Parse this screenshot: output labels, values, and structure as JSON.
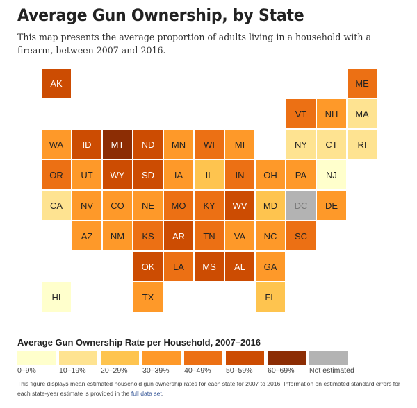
{
  "title": "Average Gun Ownership, by State",
  "subtitle": "This map presents the average proportion of adults living in a household with a firearm, between 2007 and 2016.",
  "legend": {
    "title": "Average Gun Ownership Rate per Household, 2007–2016",
    "bins": [
      {
        "label": "0–9%",
        "color": "#ffffcc"
      },
      {
        "label": "10–19%",
        "color": "#fee391"
      },
      {
        "label": "20–29%",
        "color": "#fec44f"
      },
      {
        "label": "30–39%",
        "color": "#fe9929"
      },
      {
        "label": "40–49%",
        "color": "#ec7014"
      },
      {
        "label": "50–59%",
        "color": "#cc4c02"
      },
      {
        "label": "60–69%",
        "color": "#8c2d04"
      },
      {
        "label": "Not estimated",
        "color": "#b3b3b3"
      }
    ]
  },
  "states": [
    {
      "abbr": "AK",
      "row": 0,
      "col": 0,
      "bin": 5
    },
    {
      "abbr": "ME",
      "row": 0,
      "col": 10,
      "bin": 4
    },
    {
      "abbr": "VT",
      "row": 1,
      "col": 8,
      "bin": 4
    },
    {
      "abbr": "NH",
      "row": 1,
      "col": 9,
      "bin": 3
    },
    {
      "abbr": "MA",
      "row": 1,
      "col": 10,
      "bin": 1
    },
    {
      "abbr": "WA",
      "row": 2,
      "col": 0,
      "bin": 3
    },
    {
      "abbr": "ID",
      "row": 2,
      "col": 1,
      "bin": 5
    },
    {
      "abbr": "MT",
      "row": 2,
      "col": 2,
      "bin": 6
    },
    {
      "abbr": "ND",
      "row": 2,
      "col": 3,
      "bin": 5
    },
    {
      "abbr": "MN",
      "row": 2,
      "col": 4,
      "bin": 3
    },
    {
      "abbr": "WI",
      "row": 2,
      "col": 5,
      "bin": 4
    },
    {
      "abbr": "MI",
      "row": 2,
      "col": 6,
      "bin": 3
    },
    {
      "abbr": "NY",
      "row": 2,
      "col": 8,
      "bin": 1
    },
    {
      "abbr": "CT",
      "row": 2,
      "col": 9,
      "bin": 1
    },
    {
      "abbr": "RI",
      "row": 2,
      "col": 10,
      "bin": 1
    },
    {
      "abbr": "OR",
      "row": 3,
      "col": 0,
      "bin": 4
    },
    {
      "abbr": "UT",
      "row": 3,
      "col": 1,
      "bin": 3
    },
    {
      "abbr": "WY",
      "row": 3,
      "col": 2,
      "bin": 5
    },
    {
      "abbr": "SD",
      "row": 3,
      "col": 3,
      "bin": 5
    },
    {
      "abbr": "IA",
      "row": 3,
      "col": 4,
      "bin": 3
    },
    {
      "abbr": "IL",
      "row": 3,
      "col": 5,
      "bin": 2
    },
    {
      "abbr": "IN",
      "row": 3,
      "col": 6,
      "bin": 4
    },
    {
      "abbr": "OH",
      "row": 3,
      "col": 7,
      "bin": 3
    },
    {
      "abbr": "PA",
      "row": 3,
      "col": 8,
      "bin": 3
    },
    {
      "abbr": "NJ",
      "row": 3,
      "col": 9,
      "bin": 0
    },
    {
      "abbr": "CA",
      "row": 4,
      "col": 0,
      "bin": 1
    },
    {
      "abbr": "NV",
      "row": 4,
      "col": 1,
      "bin": 3
    },
    {
      "abbr": "CO",
      "row": 4,
      "col": 2,
      "bin": 3
    },
    {
      "abbr": "NE",
      "row": 4,
      "col": 3,
      "bin": 3
    },
    {
      "abbr": "MO",
      "row": 4,
      "col": 4,
      "bin": 4
    },
    {
      "abbr": "KY",
      "row": 4,
      "col": 5,
      "bin": 4
    },
    {
      "abbr": "WV",
      "row": 4,
      "col": 6,
      "bin": 5
    },
    {
      "abbr": "MD",
      "row": 4,
      "col": 7,
      "bin": 2
    },
    {
      "abbr": "DC",
      "row": 4,
      "col": 8,
      "bin": 7
    },
    {
      "abbr": "DE",
      "row": 4,
      "col": 9,
      "bin": 3
    },
    {
      "abbr": "AZ",
      "row": 5,
      "col": 1,
      "bin": 3
    },
    {
      "abbr": "NM",
      "row": 5,
      "col": 2,
      "bin": 3
    },
    {
      "abbr": "KS",
      "row": 5,
      "col": 3,
      "bin": 4
    },
    {
      "abbr": "AR",
      "row": 5,
      "col": 4,
      "bin": 5
    },
    {
      "abbr": "TN",
      "row": 5,
      "col": 5,
      "bin": 4
    },
    {
      "abbr": "VA",
      "row": 5,
      "col": 6,
      "bin": 3
    },
    {
      "abbr": "NC",
      "row": 5,
      "col": 7,
      "bin": 3
    },
    {
      "abbr": "SC",
      "row": 5,
      "col": 8,
      "bin": 4
    },
    {
      "abbr": "OK",
      "row": 6,
      "col": 3,
      "bin": 5
    },
    {
      "abbr": "LA",
      "row": 6,
      "col": 4,
      "bin": 4
    },
    {
      "abbr": "MS",
      "row": 6,
      "col": 5,
      "bin": 5
    },
    {
      "abbr": "AL",
      "row": 6,
      "col": 6,
      "bin": 5
    },
    {
      "abbr": "GA",
      "row": 6,
      "col": 7,
      "bin": 3
    },
    {
      "abbr": "HI",
      "row": 7,
      "col": 0,
      "bin": 0
    },
    {
      "abbr": "TX",
      "row": 7,
      "col": 3,
      "bin": 3
    },
    {
      "abbr": "FL",
      "row": 7,
      "col": 7,
      "bin": 2
    }
  ],
  "note": {
    "text": "This figure displays mean estimated household gun ownership rates for each state for 2007 to 2016. Information on estimated standard errors for each state-year estimate is provided in the ",
    "link": "full data set",
    "end": "."
  }
}
